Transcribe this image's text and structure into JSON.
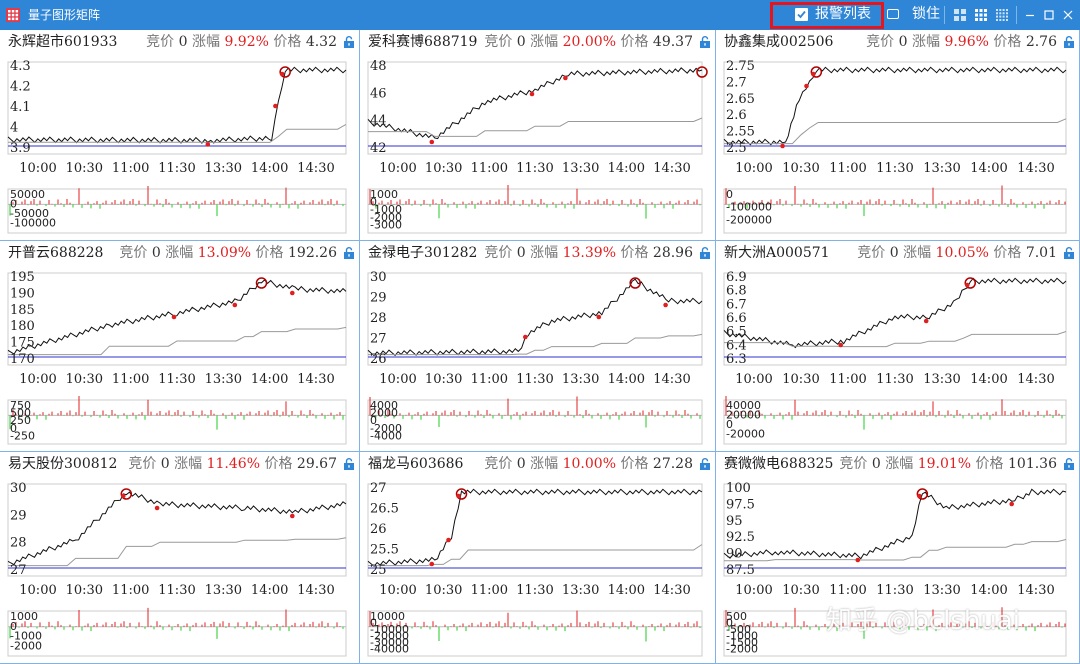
{
  "window": {
    "title": "量子图形矩阵",
    "alert_checkbox_checked": true,
    "alert_label": "报警列表",
    "lock_label": "锁住"
  },
  "labels": {
    "bid": "竞价",
    "change": "涨幅",
    "price": "价格"
  },
  "colors": {
    "up": "#e02020",
    "down": "#22cc22",
    "avg": "#999999",
    "prev_close": "#3030d0",
    "accent": "#2f86d6",
    "alert_frame": "#e8141b"
  },
  "time_ticks": [
    "10:00",
    "10:30",
    "11:00",
    "11:30",
    "13:30",
    "14:00",
    "14:30"
  ],
  "panels": [
    {
      "name": "永辉超市601933",
      "bid": "0",
      "change": "9.92%",
      "price": "4.32",
      "price_ticks": [
        "4.3",
        "4.2",
        "4.1",
        "4",
        "3.9"
      ],
      "vol_ticks": [
        "50000",
        "0",
        "-50000",
        "-100000"
      ]
    },
    {
      "name": "爱科赛博688719",
      "bid": "0",
      "change": "20.00%",
      "price": "49.37",
      "price_ticks": [
        "48",
        "46",
        "44",
        "42"
      ],
      "vol_ticks": [
        "1000",
        "0",
        "-1000",
        "-2000",
        "-3000"
      ]
    },
    {
      "name": "协鑫集成002506",
      "bid": "0",
      "change": "9.96%",
      "price": "2.76",
      "price_ticks": [
        "2.75",
        "2.7",
        "2.65",
        "2.6",
        "2.55",
        "2.5"
      ],
      "vol_ticks": [
        "0",
        "-100000",
        "-200000"
      ]
    },
    {
      "name": "开普云688228",
      "bid": "0",
      "change": "13.09%",
      "price": "192.26",
      "price_ticks": [
        "195",
        "190",
        "185",
        "180",
        "175",
        "170"
      ],
      "vol_ticks": [
        "750",
        "500",
        "250",
        "0",
        "-250"
      ]
    },
    {
      "name": "金禄电子301282",
      "bid": "0",
      "change": "13.39%",
      "price": "28.96",
      "price_ticks": [
        "30",
        "29",
        "28",
        "27",
        "26"
      ],
      "vol_ticks": [
        "4000",
        "2000",
        "0",
        "-2000",
        "-4000"
      ]
    },
    {
      "name": "新大洲A000571",
      "bid": "0",
      "change": "10.05%",
      "price": "7.01",
      "price_ticks": [
        "6.9",
        "6.8",
        "6.7",
        "6.6",
        "6.5",
        "6.4",
        "6.3"
      ],
      "vol_ticks": [
        "40000",
        "20000",
        "0",
        "-20000"
      ]
    },
    {
      "name": "易天股份300812",
      "bid": "0",
      "change": "11.46%",
      "price": "29.67",
      "price_ticks": [
        "30",
        "29",
        "28",
        "27"
      ],
      "vol_ticks": [
        "1000",
        "0",
        "-1000",
        "-2000"
      ]
    },
    {
      "name": "福龙马603686",
      "bid": "0",
      "change": "10.00%",
      "price": "27.28",
      "price_ticks": [
        "27",
        "26.5",
        "26",
        "25.5",
        "25"
      ],
      "vol_ticks": [
        "10000",
        "0",
        "-10000",
        "-20000",
        "-30000",
        "-40000"
      ]
    },
    {
      "name": "赛微微电688325",
      "bid": "0",
      "change": "19.01%",
      "price": "101.36",
      "price_ticks": [
        "100",
        "97.5",
        "95",
        "92.5",
        "90",
        "87.5"
      ],
      "vol_ticks": [
        "500",
        "0",
        "-500",
        "-1000",
        "-1500",
        "-2000"
      ]
    }
  ],
  "watermark": "知乎 @bclshuai"
}
